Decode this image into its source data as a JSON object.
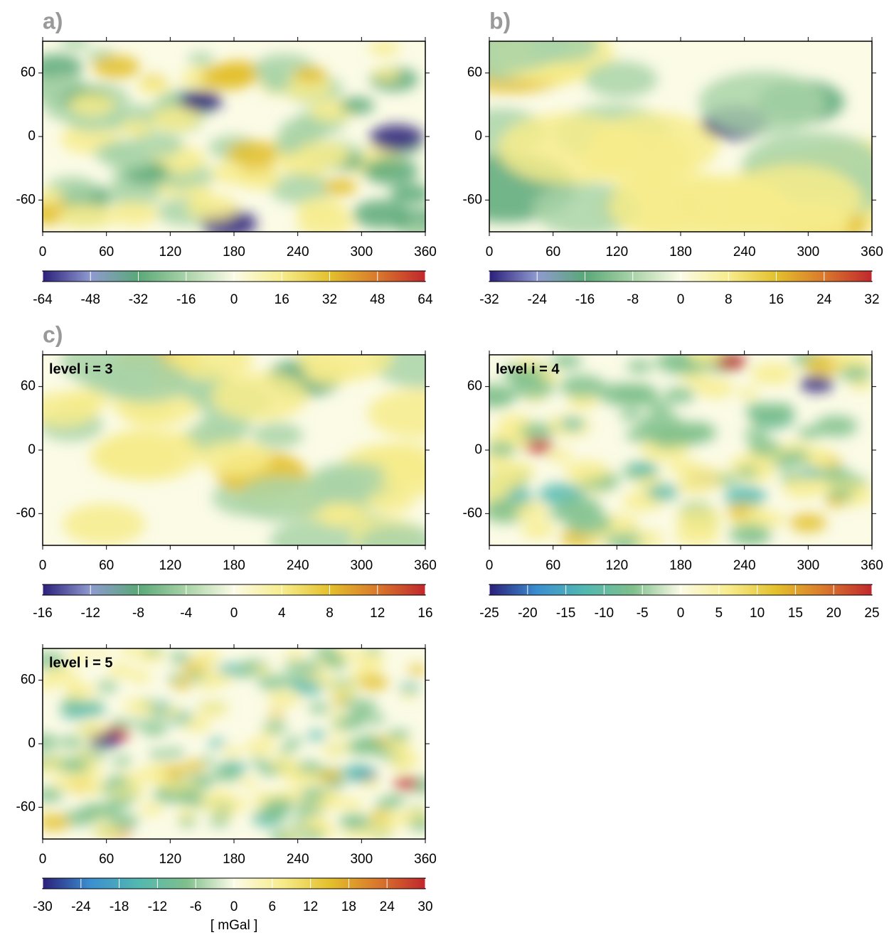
{
  "chart_data": [
    {
      "type": "heatmap",
      "panel_label": "a)",
      "xlim": [
        0,
        360
      ],
      "xticks": [
        0,
        60,
        120,
        180,
        240,
        300,
        360
      ],
      "ylim": [
        -90,
        90
      ],
      "yticks": [
        -60,
        0,
        60
      ],
      "colorbar": {
        "lim": [
          -64,
          64
        ],
        "ticks": [
          -64,
          -48,
          -32,
          -16,
          0,
          16,
          32,
          48,
          64
        ],
        "colors": [
          "#2b1f7a",
          "#8f9ad0",
          "#5aa878",
          "#a9d3a8",
          "#fbfbe6",
          "#f7ec8c",
          "#e3c02c",
          "#d9782c",
          "#c1272d"
        ]
      }
    },
    {
      "type": "heatmap",
      "panel_label": "b)",
      "xlim": [
        0,
        360
      ],
      "xticks": [
        0,
        60,
        120,
        180,
        240,
        300,
        360
      ],
      "ylim": [
        -90,
        90
      ],
      "yticks": [
        -60,
        0,
        60
      ],
      "colorbar": {
        "lim": [
          -32,
          32
        ],
        "ticks": [
          -32,
          -24,
          -16,
          -8,
          0,
          8,
          16,
          24,
          32
        ],
        "colors": [
          "#2b1f7a",
          "#8f9ad0",
          "#5aa878",
          "#a9d3a8",
          "#fbfbe6",
          "#f7ec8c",
          "#e3c02c",
          "#d9782c",
          "#c1272d"
        ]
      }
    },
    {
      "type": "heatmap",
      "panel_label": "c)",
      "annotation": "level i = 3",
      "xlim": [
        0,
        360
      ],
      "xticks": [
        0,
        60,
        120,
        180,
        240,
        300,
        360
      ],
      "ylim": [
        -90,
        90
      ],
      "yticks": [
        -60,
        0,
        60
      ],
      "colorbar": {
        "lim": [
          -16,
          16
        ],
        "ticks": [
          -16,
          -12,
          -8,
          -4,
          0,
          4,
          8,
          12,
          16
        ],
        "colors": [
          "#2b1f7a",
          "#8f9ad0",
          "#5aa878",
          "#a9d3a8",
          "#fbfbe6",
          "#f7ec8c",
          "#e3c02c",
          "#d9782c",
          "#c1272d"
        ]
      }
    },
    {
      "type": "heatmap",
      "annotation": "level i = 4",
      "xlim": [
        0,
        360
      ],
      "xticks": [
        0,
        60,
        120,
        180,
        240,
        300,
        360
      ],
      "ylim": [
        -90,
        90
      ],
      "yticks": [
        -60,
        0,
        60
      ],
      "colorbar": {
        "lim": [
          -25,
          25
        ],
        "ticks": [
          -25,
          -20,
          -15,
          -10,
          -5,
          0,
          5,
          10,
          15,
          20,
          25
        ],
        "colors": [
          "#2b1f7a",
          "#3b8fd0",
          "#52b8b0",
          "#7fbf8c",
          "#fbfbe6",
          "#f7ec8c",
          "#e3c02c",
          "#d9782c",
          "#c1272d"
        ]
      }
    },
    {
      "type": "heatmap",
      "annotation": "level i = 5",
      "xlim": [
        0,
        360
      ],
      "xticks": [
        0,
        60,
        120,
        180,
        240,
        300,
        360
      ],
      "ylim": [
        -90,
        90
      ],
      "yticks": [
        -60,
        0,
        60
      ],
      "colorbar": {
        "lim": [
          -30,
          30
        ],
        "ticks": [
          -30,
          -24,
          -18,
          -12,
          -6,
          0,
          6,
          12,
          18,
          24,
          30
        ],
        "label": "[ mGal ]",
        "colors": [
          "#2b1f7a",
          "#3b8fd0",
          "#52b8b0",
          "#7fbf8c",
          "#fbfbe6",
          "#f7ec8c",
          "#e3c02c",
          "#d9782c",
          "#c1272d"
        ]
      }
    }
  ]
}
